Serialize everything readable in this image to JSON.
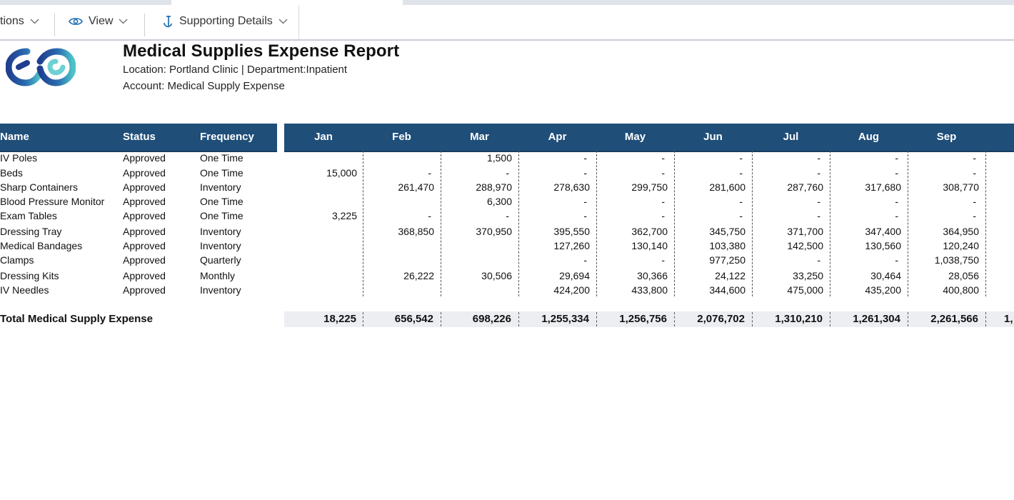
{
  "toolbar": {
    "items": [
      {
        "label": "tions",
        "icon": "none"
      },
      {
        "label": "View",
        "icon": "eye-icon"
      },
      {
        "label": "Supporting Details",
        "icon": "anchor-icon"
      }
    ]
  },
  "report": {
    "title": "Medical Supplies Expense Report",
    "location_line": "Location: Portland Clinic | Department:Inpatient",
    "account_line": "Account: Medical Supply Expense"
  },
  "table": {
    "headers": [
      "Name",
      "Status",
      "Frequency",
      "Jan",
      "Feb",
      "Mar",
      "Apr",
      "May",
      "Jun",
      "Jul",
      "Aug",
      "Sep"
    ],
    "rows": [
      {
        "name": "IV Poles",
        "status": "Approved",
        "frequency": "One Time",
        "values": [
          "",
          "",
          "1,500",
          "-",
          "-",
          "-",
          "-",
          "-",
          "-"
        ]
      },
      {
        "name": "Beds",
        "status": "Approved",
        "frequency": "One Time",
        "values": [
          "15,000",
          "-",
          "-",
          "-",
          "-",
          "-",
          "-",
          "-",
          "-"
        ]
      },
      {
        "name": "Sharp Containers",
        "status": "Approved",
        "frequency": "Inventory",
        "values": [
          "",
          "261,470",
          "288,970",
          "278,630",
          "299,750",
          "281,600",
          "287,760",
          "317,680",
          "308,770"
        ]
      },
      {
        "name": "Blood Pressure Monitor",
        "status": "Approved",
        "frequency": "One Time",
        "values": [
          "",
          "",
          "6,300",
          "-",
          "-",
          "-",
          "-",
          "-",
          "-"
        ]
      },
      {
        "name": "Exam Tables",
        "status": "Approved",
        "frequency": "One Time",
        "values": [
          "3,225",
          "-",
          "-",
          "-",
          "-",
          "-",
          "-",
          "-",
          "-"
        ]
      },
      {
        "name": "Dressing Tray",
        "status": "Approved",
        "frequency": "Inventory",
        "values": [
          "",
          "368,850",
          "370,950",
          "395,550",
          "362,700",
          "345,750",
          "371,700",
          "347,400",
          "364,950"
        ]
      },
      {
        "name": "Medical Bandages",
        "status": "Approved",
        "frequency": "Inventory",
        "values": [
          "",
          "",
          "",
          "127,260",
          "130,140",
          "103,380",
          "142,500",
          "130,560",
          "120,240"
        ]
      },
      {
        "name": "Clamps",
        "status": "Approved",
        "frequency": "Quarterly",
        "values": [
          "",
          "",
          "",
          "-",
          "-",
          "977,250",
          "-",
          "-",
          "1,038,750"
        ]
      },
      {
        "name": "Dressing Kits",
        "status": "Approved",
        "frequency": "Monthly",
        "values": [
          "",
          "26,222",
          "30,506",
          "29,694",
          "30,366",
          "24,122",
          "33,250",
          "30,464",
          "28,056"
        ]
      },
      {
        "name": "IV Needles",
        "status": "Approved",
        "frequency": "Inventory",
        "values": [
          "",
          "",
          "",
          "424,200",
          "433,800",
          "344,600",
          "475,000",
          "435,200",
          "400,800"
        ]
      }
    ],
    "total": {
      "label": "Total  Medical Supply Expense",
      "values": [
        "18,225",
        "656,542",
        "698,226",
        "1,255,334",
        "1,256,756",
        "2,076,702",
        "1,310,210",
        "1,261,304",
        "2,261,566"
      ],
      "cutoff": "1,"
    }
  },
  "colors": {
    "header_bg": "#1f4e79",
    "total_bg": "#eceef2",
    "logo_dark": "#1f3f8f",
    "logo_light": "#4fc3c8"
  }
}
